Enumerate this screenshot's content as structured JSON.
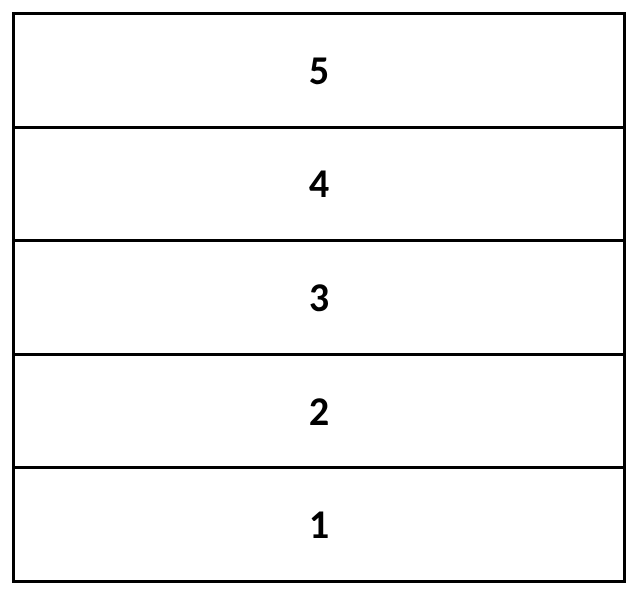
{
  "diagram": {
    "type": "stacked-layers",
    "layout": "vertical",
    "border_color": "#000000",
    "fill_color": "#ffffff",
    "text_color": "#000000",
    "font_size": 40,
    "font_weight": 700,
    "outer_margin": 12,
    "border_width": 3,
    "layers": [
      {
        "label": "5"
      },
      {
        "label": "4"
      },
      {
        "label": "3"
      },
      {
        "label": "2"
      },
      {
        "label": "1"
      }
    ]
  }
}
